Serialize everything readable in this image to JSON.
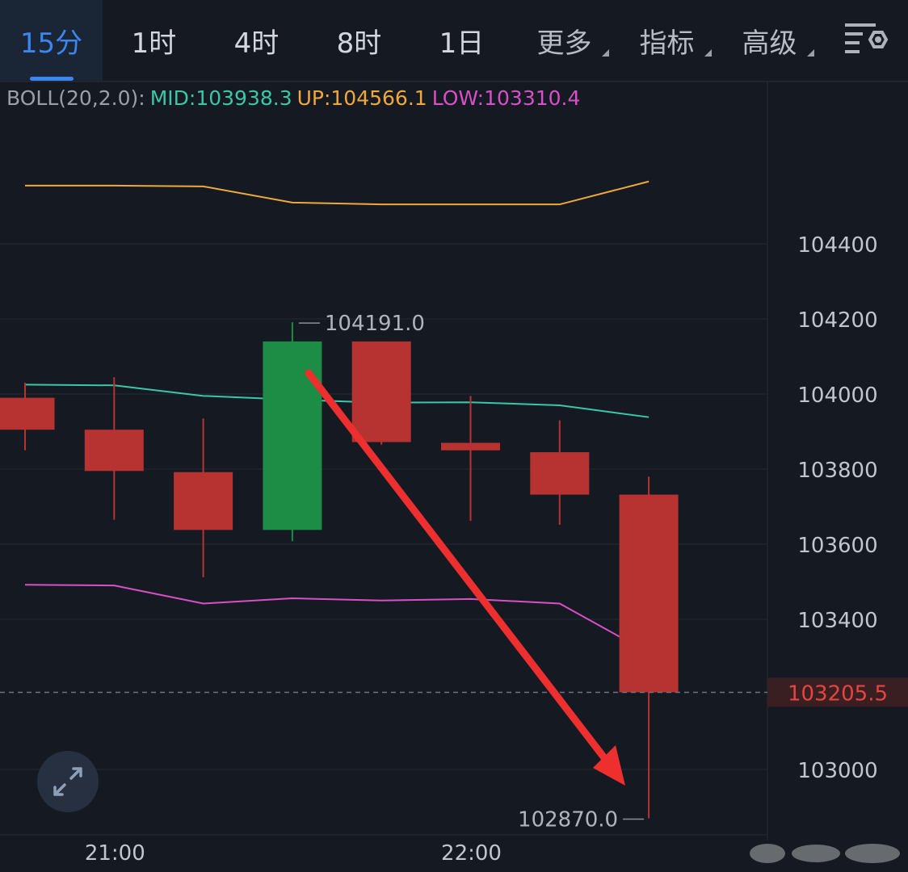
{
  "tabs": [
    {
      "label": "15分",
      "active": true
    },
    {
      "label": "1时"
    },
    {
      "label": "4时"
    },
    {
      "label": "8时"
    },
    {
      "label": "1日"
    },
    {
      "label": "更多",
      "dropdown": true
    },
    {
      "label": "指标",
      "dropdown": true
    },
    {
      "label": "高级",
      "dropdown": true
    }
  ],
  "settings_icon": "settings-gear-icon",
  "boll": {
    "prefix": "BOLL(20,2.0):",
    "mid_text": "MID:103938.3",
    "up_text": "UP:104566.1",
    "low_text": "LOW:103310.4",
    "colors": {
      "prefix": "#9aa0aa",
      "mid": "#3bc6a8",
      "up": "#f0a83c",
      "low": "#d84fc8"
    }
  },
  "chart_data": {
    "type": "candlestick",
    "y_range": [
      102800,
      104780
    ],
    "y_ticks": [
      "104400",
      "104200",
      "104000",
      "103800",
      "103600",
      "103400",
      "103000"
    ],
    "x_ticks": [
      {
        "label": "21:00",
        "index": 1
      },
      {
        "label": "22:00",
        "index": 5
      }
    ],
    "candles": [
      {
        "open": 103990,
        "high": 104030,
        "low": 103850,
        "close": 103905
      },
      {
        "open": 103905,
        "high": 104045,
        "low": 103665,
        "close": 103795
      },
      {
        "open": 103792,
        "high": 103935,
        "low": 103512,
        "close": 103638
      },
      {
        "open": 103638,
        "high": 104191,
        "low": 103608,
        "close": 104140
      },
      {
        "open": 104140,
        "high": 104140,
        "low": 103865,
        "close": 103872
      },
      {
        "open": 103870,
        "high": 103995,
        "low": 103662,
        "close": 103850
      },
      {
        "open": 103845,
        "high": 103930,
        "low": 103652,
        "close": 103732
      },
      {
        "open": 103732,
        "high": 103780,
        "low": 102870,
        "close": 103205.5
      }
    ],
    "boll_up": [
      104555,
      104555,
      104553,
      104510,
      104505,
      104505,
      104505,
      104566.1
    ],
    "boll_mid": [
      104025,
      104023,
      103995,
      103985,
      103977,
      103978,
      103970,
      103938.3
    ],
    "boll_low": [
      103492,
      103490,
      103442,
      103456,
      103450,
      103454,
      103442,
      103310.4
    ],
    "annotations": {
      "high_label": "104191.0",
      "low_label": "102870.0"
    },
    "current_price": "103205.5",
    "colors": {
      "up_candle": "#1d8c44",
      "down_candle": "#b73331",
      "up_band": "#f0a83c",
      "mid_band": "#3bc6a8",
      "low_band": "#d84fc8",
      "arrow": "#ee2f2f",
      "current_price_bg": "#3a1f22",
      "current_price_text": "#e5453f"
    }
  }
}
